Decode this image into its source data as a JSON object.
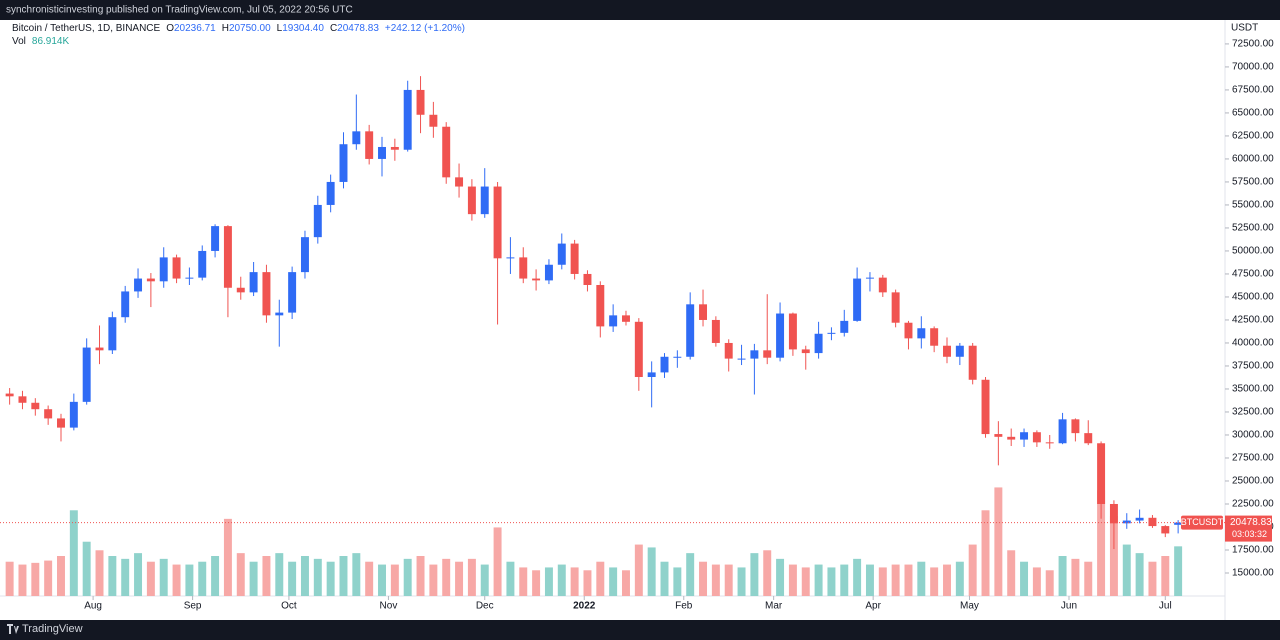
{
  "header": {
    "publisher": "synchronisticinvesting published on TradingView.com, Jul 05, 2022 20:56 UTC"
  },
  "legend": {
    "symbol": "Bitcoin / TetherUS, 1D, BINANCE",
    "ohlc": [
      {
        "key": "O",
        "value": "20236.71"
      },
      {
        "key": "H",
        "value": "20750.00"
      },
      {
        "key": "L",
        "value": "19304.40"
      },
      {
        "key": "C",
        "value": "20478.83"
      }
    ],
    "change": "+242.12 (+1.20%)",
    "volume_key": "Vol",
    "volume_value": "86.914K"
  },
  "footer": {
    "brand": "TradingView"
  },
  "chart_data": {
    "type": "candlestick",
    "unit": "USDT",
    "symbol_tag": "BTCUSDT",
    "last_price": {
      "value": 20478.83,
      "label": "20478.83"
    },
    "countdown": "03:03:32",
    "up_color": "#2f6bf5",
    "down_color": "#f05350",
    "volume_up_color": "#8fd2cb",
    "volume_down_color": "#f7a8a6",
    "xlim": [
      -29,
      352.6
    ],
    "ylim": [
      12500,
      75100
    ],
    "volume_lim": [
      0,
      350000
    ],
    "xticks": [
      {
        "value": 0,
        "label": "Aug"
      },
      {
        "value": 31,
        "label": "Sep"
      },
      {
        "value": 61,
        "label": "Oct"
      },
      {
        "value": 92,
        "label": "Nov"
      },
      {
        "value": 122,
        "label": "Dec"
      },
      {
        "value": 153,
        "label": "2022"
      },
      {
        "value": 184,
        "label": "Feb"
      },
      {
        "value": 212,
        "label": "Mar"
      },
      {
        "value": 243,
        "label": "Apr"
      },
      {
        "value": 273,
        "label": "May"
      },
      {
        "value": 304,
        "label": "Jun"
      },
      {
        "value": 334,
        "label": "Jul"
      }
    ],
    "yticks": [
      {
        "value": 15000,
        "label": "15000.00"
      },
      {
        "value": 17500,
        "label": "17500.00"
      },
      {
        "value": 20000,
        "label": "20000.00"
      },
      {
        "value": 22500,
        "label": "22500.00"
      },
      {
        "value": 25000,
        "label": "25000.00"
      },
      {
        "value": 27500,
        "label": "27500.00"
      },
      {
        "value": 30000,
        "label": "30000.00"
      },
      {
        "value": 32500,
        "label": "32500.00"
      },
      {
        "value": 35000,
        "label": "35000.00"
      },
      {
        "value": 37500,
        "label": "37500.00"
      },
      {
        "value": 40000,
        "label": "40000.00"
      },
      {
        "value": 42500,
        "label": "42500.00"
      },
      {
        "value": 45000,
        "label": "45000.00"
      },
      {
        "value": 47500,
        "label": "47500.00"
      },
      {
        "value": 50000,
        "label": "50000.00"
      },
      {
        "value": 52500,
        "label": "52500.00"
      },
      {
        "value": 55000,
        "label": "55000.00"
      },
      {
        "value": 57500,
        "label": "57500.00"
      },
      {
        "value": 60000,
        "label": "60000.00"
      },
      {
        "value": 62500,
        "label": "62500.00"
      },
      {
        "value": 65000,
        "label": "65000.00"
      },
      {
        "value": 67500,
        "label": "67500.00"
      },
      {
        "value": 70000,
        "label": "70000.00"
      },
      {
        "value": 72500,
        "label": "72500.00"
      }
    ],
    "x": [
      -26,
      -22,
      -18,
      -14,
      -10,
      -6,
      -2,
      2,
      6,
      10,
      14,
      18,
      22,
      26,
      30,
      34,
      38,
      42,
      46,
      50,
      54,
      58,
      62,
      66,
      70,
      74,
      78,
      82,
      86,
      90,
      94,
      98,
      102,
      106,
      110,
      114,
      118,
      122,
      126,
      130,
      134,
      138,
      142,
      146,
      150,
      154,
      158,
      162,
      166,
      170,
      174,
      178,
      182,
      186,
      190,
      194,
      198,
      202,
      206,
      210,
      214,
      218,
      222,
      226,
      230,
      234,
      238,
      242,
      246,
      250,
      254,
      258,
      262,
      266,
      270,
      274,
      278,
      282,
      286,
      290,
      294,
      298,
      302,
      306,
      310,
      314,
      318,
      322,
      326,
      330,
      334,
      338
    ],
    "open": [
      34500,
      34200,
      33500,
      32800,
      31800,
      30800,
      33600,
      39500,
      39200,
      42800,
      45600,
      47000,
      46700,
      49300,
      47000,
      47100,
      50000,
      52700,
      46000,
      45500,
      47700,
      43000,
      43300,
      47700,
      51500,
      55000,
      57500,
      61600,
      63000,
      60000,
      61300,
      61000,
      67500,
      64800,
      63500,
      58000,
      57000,
      54000,
      57000,
      49200,
      49300,
      47000,
      46800,
      48500,
      50800,
      47500,
      46300,
      41800,
      43000,
      42300,
      36300,
      36800,
      38500,
      38500,
      44200,
      42500,
      40000,
      38300,
      38300,
      39200,
      38400,
      43200,
      39300,
      38900,
      41000,
      41100,
      42400,
      47000,
      47100,
      45500,
      42200,
      40500,
      41600,
      39700,
      38500,
      39700,
      36000,
      30100,
      29800,
      29500,
      30300,
      29200,
      29100,
      31700,
      30200,
      29100,
      22500,
      20400,
      20700,
      21000,
      20100,
      20236.71
    ],
    "high": [
      35100,
      34800,
      34000,
      33200,
      32300,
      34500,
      40500,
      41900,
      43400,
      46200,
      48100,
      47600,
      50400,
      49600,
      48200,
      50600,
      52900,
      52800,
      47200,
      48800,
      48500,
      44700,
      48300,
      52200,
      56000,
      58300,
      62900,
      67000,
      63700,
      62400,
      62200,
      68500,
      69000,
      66200,
      64000,
      59500,
      57800,
      59000,
      57500,
      51500,
      50400,
      48000,
      49100,
      51900,
      51200,
      47900,
      46700,
      44200,
      43500,
      42700,
      38000,
      38900,
      39200,
      45500,
      45800,
      42900,
      40400,
      39800,
      39900,
      45300,
      44400,
      43300,
      39700,
      42300,
      41700,
      43600,
      48200,
      47700,
      47400,
      45800,
      42400,
      42900,
      41800,
      40600,
      40000,
      40000,
      36300,
      31500,
      30700,
      30700,
      30500,
      30000,
      32400,
      31800,
      31600,
      29300,
      22900,
      21500,
      21900,
      21300,
      20200,
      20750
    ],
    "low": [
      33300,
      32800,
      32100,
      31100,
      29300,
      30500,
      33300,
      37700,
      38800,
      42200,
      44900,
      43900,
      46000,
      46500,
      46300,
      46800,
      49300,
      42800,
      44700,
      45100,
      42200,
      39600,
      42600,
      47000,
      50800,
      54200,
      56800,
      61000,
      59400,
      58100,
      59800,
      60800,
      62800,
      62300,
      57300,
      55800,
      53300,
      53600,
      42000,
      47500,
      46500,
      45700,
      46400,
      48000,
      46900,
      45600,
      40600,
      41200,
      41900,
      34800,
      33000,
      36200,
      37300,
      38200,
      41800,
      39600,
      36900,
      37600,
      34400,
      37700,
      38000,
      38600,
      37100,
      38300,
      40300,
      40700,
      42300,
      45600,
      45000,
      41700,
      39300,
      39400,
      39000,
      37800,
      37600,
      35500,
      29700,
      26700,
      28800,
      28700,
      28700,
      28500,
      29000,
      29300,
      28900,
      20900,
      17600,
      19800,
      20400,
      19900,
      18900,
      19304.4
    ],
    "close": [
      34200,
      33500,
      32800,
      31800,
      30800,
      33600,
      39500,
      39200,
      42800,
      45600,
      47000,
      46700,
      49300,
      47000,
      47100,
      50000,
      52700,
      46000,
      45500,
      47700,
      43000,
      43300,
      47700,
      51500,
      55000,
      57500,
      61600,
      63000,
      60000,
      61300,
      61000,
      67500,
      64800,
      63500,
      58000,
      57000,
      54000,
      57000,
      49200,
      49300,
      47000,
      46800,
      48500,
      50800,
      47500,
      46300,
      41800,
      43000,
      42300,
      36300,
      36800,
      38500,
      38500,
      44200,
      42500,
      40000,
      38300,
      38300,
      39200,
      38400,
      43200,
      39300,
      38900,
      41000,
      41100,
      42400,
      47000,
      47100,
      45500,
      42200,
      40500,
      41600,
      39700,
      38500,
      39700,
      36000,
      30100,
      29800,
      29500,
      30300,
      29200,
      29100,
      31700,
      30200,
      29100,
      22500,
      20400,
      20700,
      21000,
      20100,
      19300,
      20478.83
    ],
    "volume": [
      60000,
      55000,
      58000,
      62000,
      70000,
      150000,
      95000,
      80000,
      70000,
      65000,
      75000,
      60000,
      65000,
      55000,
      55000,
      60000,
      70000,
      135000,
      75000,
      60000,
      70000,
      75000,
      60000,
      70000,
      65000,
      60000,
      70000,
      75000,
      60000,
      55000,
      55000,
      65000,
      70000,
      55000,
      65000,
      60000,
      65000,
      55000,
      120000,
      60000,
      50000,
      45000,
      50000,
      55000,
      50000,
      45000,
      60000,
      50000,
      45000,
      90000,
      85000,
      60000,
      50000,
      75000,
      60000,
      55000,
      55000,
      50000,
      75000,
      80000,
      65000,
      55000,
      50000,
      55000,
      50000,
      55000,
      65000,
      55000,
      50000,
      55000,
      55000,
      60000,
      50000,
      55000,
      60000,
      90000,
      150000,
      190000,
      80000,
      60000,
      50000,
      45000,
      70000,
      65000,
      60000,
      185000,
      140000,
      90000,
      75000,
      60000,
      70000,
      86914
    ]
  }
}
